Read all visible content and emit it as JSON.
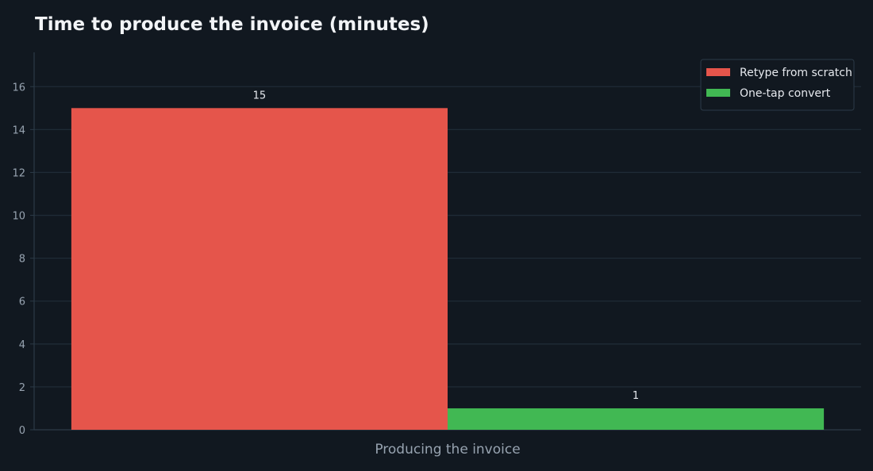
{
  "title": "Time to produce the invoice (minutes)",
  "colors": {
    "background": "#111820",
    "grid": "#1f2b36",
    "axis": "#2c3a47",
    "tick_text": "#97a3b0",
    "label_text": "#e6e9ee",
    "legend_border": "#2c3a47"
  },
  "chart_data": {
    "type": "bar",
    "title": "Time to produce the invoice (minutes)",
    "categories": [
      "Producing the invoice"
    ],
    "xlabel": "",
    "ylabel": "",
    "ylim": [
      0,
      17.6
    ],
    "yticks": [
      0,
      2,
      4,
      6,
      8,
      10,
      12,
      14,
      16
    ],
    "grid": true,
    "legend_position": "top-right",
    "series": [
      {
        "name": "Retype from scratch",
        "values": [
          15
        ],
        "color": "#e5554b"
      },
      {
        "name": "One-tap convert",
        "values": [
          1
        ],
        "color": "#41b853"
      }
    ]
  }
}
